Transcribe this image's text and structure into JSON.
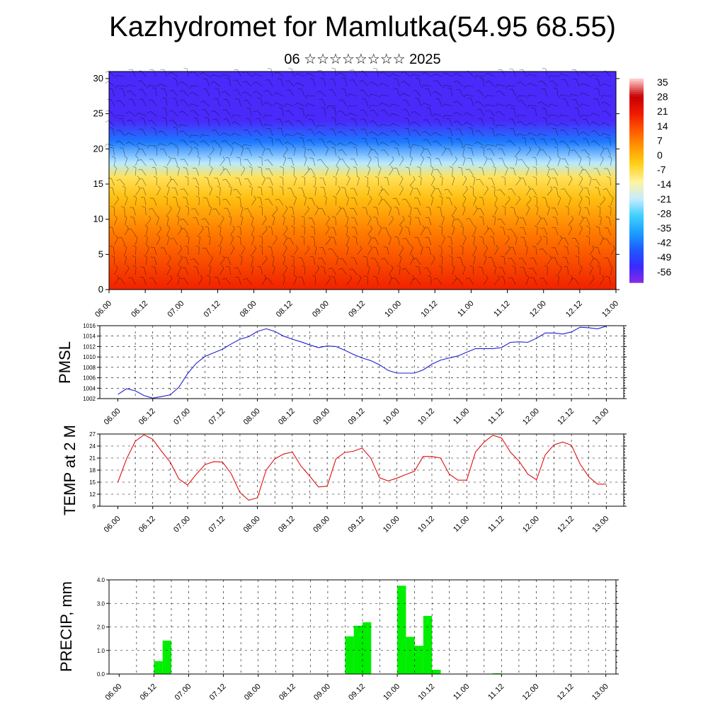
{
  "header": {
    "title": "Kazhydromet for Mamlutka(54.95 68.55)",
    "subtitle": "06 ☆☆☆☆☆☆☆☆ 2025"
  },
  "colors": {
    "pmsl_line": "#1f1fd6",
    "temp_line": "#e01010",
    "precip_bar": "#00ee00",
    "colormap": [
      "#8a2be2",
      "#3a2aff",
      "#1e5bff",
      "#1aa0ff",
      "#40d0ff",
      "#c8ecff",
      "#fff3a0",
      "#ffd21a",
      "#ff9a00",
      "#ff5a00",
      "#f01a00",
      "#c80000",
      "#ffc8c8"
    ]
  },
  "chart_data": [
    {
      "type": "heatmap",
      "title": "",
      "variable": "temperature cross-section with wind barbs",
      "x_tick_labels": [
        "06.00",
        "06.12",
        "07.00",
        "07.12",
        "08.00",
        "08.12",
        "09.00",
        "09.12",
        "10.00",
        "10.12",
        "11.00",
        "11.12",
        "12.00",
        "12.12",
        "13.00"
      ],
      "y_ticks": [
        0,
        5,
        10,
        15,
        20,
        25,
        30
      ],
      "ylim": [
        0,
        31
      ],
      "colorbar_labels": [
        "35",
        "28",
        "21",
        "14",
        "7",
        "0",
        "-7",
        "-14",
        "-21",
        "-28",
        "-35",
        "-42",
        "-49",
        "-56"
      ],
      "levels_profile": [
        {
          "level": 0,
          "value": 22
        },
        {
          "level": 8,
          "value": 10
        },
        {
          "level": 13,
          "value": 0
        },
        {
          "level": 16,
          "value": -7
        },
        {
          "level": 18,
          "value": -21
        },
        {
          "level": 21,
          "value": -42
        },
        {
          "level": 24,
          "value": -56
        },
        {
          "level": 31,
          "value": -56
        }
      ]
    },
    {
      "type": "line",
      "ylabel": "PMSL",
      "y_ticks": [
        1002,
        1004,
        1006,
        1008,
        1010,
        1012,
        1014,
        1016
      ],
      "ylim": [
        1002,
        1016
      ],
      "x_tick_labels": [
        "06.00",
        "06.12",
        "07.00",
        "07.12",
        "08.00",
        "08.12",
        "09.00",
        "09.12",
        "10.00",
        "10.12",
        "11.00",
        "11.12",
        "12.00",
        "12.12",
        "13.00"
      ],
      "x": [
        0,
        3,
        6,
        9,
        12,
        15,
        18,
        21,
        24,
        27,
        30,
        33,
        36,
        39,
        42,
        45,
        48,
        51,
        54,
        57,
        60,
        63,
        66,
        69,
        72,
        75,
        78,
        81,
        84,
        87,
        90,
        93,
        96,
        99,
        102,
        105,
        108,
        111,
        114,
        117,
        120,
        123,
        126,
        129,
        132,
        135,
        138,
        141,
        144,
        147,
        150,
        153,
        156,
        159,
        162,
        165,
        168
      ],
      "series": [
        {
          "values": [
            1002.8,
            1003.9,
            1003.5,
            1002.6,
            1002.1,
            1002.4,
            1002.7,
            1004.2,
            1006.8,
            1008.8,
            1010.1,
            1010.8,
            1011.5,
            1012.5,
            1013.4,
            1013.9,
            1014.9,
            1015.4,
            1014.9,
            1014.0,
            1013.4,
            1012.9,
            1012.3,
            1011.8,
            1012.1,
            1012.0,
            1011.3,
            1010.5,
            1009.8,
            1009.3,
            1008.5,
            1007.4,
            1006.9,
            1006.9,
            1006.9,
            1007.5,
            1008.6,
            1009.4,
            1009.8,
            1010.2,
            1010.9,
            1011.6,
            1011.6,
            1011.6,
            1011.8,
            1012.8,
            1012.9,
            1012.8,
            1013.6,
            1014.6,
            1014.6,
            1014.4,
            1014.8,
            1015.7,
            1015.6,
            1015.4,
            1015.9
          ]
        }
      ]
    },
    {
      "type": "line",
      "ylabel": "TEMP at 2 M",
      "y_ticks": [
        9,
        12,
        15,
        18,
        21,
        24,
        27
      ],
      "ylim": [
        9,
        27
      ],
      "x_tick_labels": [
        "06.00",
        "06.12",
        "07.00",
        "07.12",
        "08.00",
        "08.12",
        "09.00",
        "09.12",
        "10.00",
        "10.12",
        "11.00",
        "11.12",
        "12.00",
        "12.12",
        "13.00"
      ],
      "x": [
        0,
        3,
        6,
        9,
        12,
        15,
        18,
        21,
        24,
        27,
        30,
        33,
        36,
        39,
        42,
        45,
        48,
        51,
        54,
        57,
        60,
        63,
        66,
        69,
        72,
        75,
        78,
        81,
        84,
        87,
        90,
        93,
        96,
        99,
        102,
        105,
        108,
        111,
        114,
        117,
        120,
        123,
        126,
        129,
        132,
        135,
        138,
        141,
        144,
        147,
        150,
        153,
        156,
        159,
        162,
        165,
        168
      ],
      "series": [
        {
          "values": [
            15.0,
            20.8,
            25.2,
            26.8,
            25.7,
            22.7,
            20.0,
            15.8,
            14.3,
            17.0,
            19.4,
            20.1,
            20.0,
            17.1,
            12.4,
            10.5,
            11.1,
            18.0,
            20.8,
            22.0,
            22.5,
            19.0,
            16.5,
            13.8,
            14.0,
            20.8,
            22.4,
            22.7,
            23.5,
            21.0,
            16.1,
            15.3,
            16.0,
            16.9,
            17.7,
            21.4,
            21.4,
            21.0,
            17.0,
            15.5,
            15.5,
            22.5,
            25.0,
            26.7,
            26.0,
            22.5,
            20.2,
            17.0,
            15.6,
            21.8,
            24.3,
            25.0,
            24.2,
            19.5,
            16.3,
            14.5,
            14.5
          ]
        }
      ]
    },
    {
      "type": "bar",
      "ylabel": "PRECIP, mm",
      "y_tick_labels": [
        "0.0",
        "1.0",
        "2.0",
        "3.0",
        "4.0"
      ],
      "ylim": [
        0,
        4
      ],
      "x_tick_labels": [
        "06.00",
        "06.12",
        "07.00",
        "07.12",
        "08.00",
        "08.12",
        "09.00",
        "09.12",
        "10.00",
        "10.12",
        "11.00",
        "11.12",
        "12.00",
        "12.12",
        "13.00"
      ],
      "bar_width_hours": 3,
      "bars": [
        {
          "x": 12,
          "value": 0.55
        },
        {
          "x": 15,
          "value": 1.42
        },
        {
          "x": 78,
          "value": 1.6
        },
        {
          "x": 81,
          "value": 2.05
        },
        {
          "x": 84,
          "value": 2.2
        },
        {
          "x": 96,
          "value": 3.75
        },
        {
          "x": 99,
          "value": 1.58
        },
        {
          "x": 102,
          "value": 1.2
        },
        {
          "x": 105,
          "value": 2.47
        },
        {
          "x": 108,
          "value": 0.18
        },
        {
          "x": 129,
          "value": 0.03
        }
      ]
    }
  ]
}
